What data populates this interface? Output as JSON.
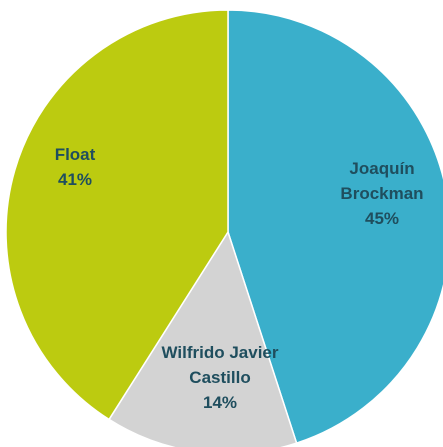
{
  "chart_data": {
    "type": "pie",
    "title": "",
    "slices": [
      {
        "name": "Joaquín Brockman",
        "name_lines": [
          "Joaquín",
          "Brockman"
        ],
        "value": 45,
        "label": "45%",
        "color": "#3AAFCB",
        "label_color": "#1F4E5E"
      },
      {
        "name": "Wilfrido Javier Castillo",
        "name_lines": [
          "Wilfrido Javier",
          "Castillo"
        ],
        "value": 14,
        "label": "14%",
        "color": "#D3D3D3",
        "label_color": "#1F4E5E"
      },
      {
        "name": "Float",
        "name_lines": [
          "Float"
        ],
        "value": 41,
        "label": "41%",
        "color": "#BCCB10",
        "label_color": "#1F4E5E"
      }
    ],
    "legend": "none",
    "data_labels": "on-slice"
  }
}
